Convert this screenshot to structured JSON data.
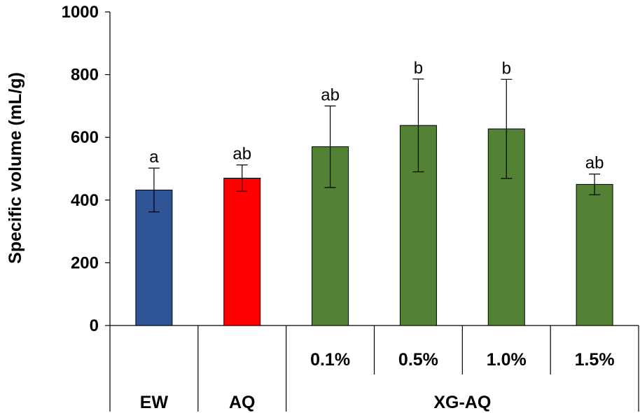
{
  "chart_data": {
    "type": "bar",
    "title": "",
    "ylabel": "Specific volume (mL/g)",
    "xlabel": "",
    "ylim": [
      0,
      1000
    ],
    "yticks": [
      0,
      200,
      400,
      600,
      800,
      1000
    ],
    "grid": false,
    "colors": {
      "EW": "#2f5597",
      "AQ": "#ff0000",
      "XG-AQ": "#548235"
    },
    "bars": [
      {
        "group": "EW",
        "sublabel": "",
        "value": 432,
        "error": 70,
        "sig": "a",
        "color": "#2f5597"
      },
      {
        "group": "AQ",
        "sublabel": "",
        "value": 470,
        "error": 42,
        "sig": "ab",
        "color": "#ff0000"
      },
      {
        "group": "XG-AQ",
        "sublabel": "0.1%",
        "value": 570,
        "error": 130,
        "sig": "ab",
        "color": "#548235"
      },
      {
        "group": "XG-AQ",
        "sublabel": "0.5%",
        "value": 638,
        "error": 148,
        "sig": "b",
        "color": "#548235"
      },
      {
        "group": "XG-AQ",
        "sublabel": "1.0%",
        "value": 627,
        "error": 158,
        "sig": "b",
        "color": "#548235"
      },
      {
        "group": "XG-AQ",
        "sublabel": "1.5%",
        "value": 450,
        "error": 33,
        "sig": "ab",
        "color": "#548235"
      }
    ],
    "groups": [
      "EW",
      "AQ",
      "XG-AQ"
    ]
  }
}
